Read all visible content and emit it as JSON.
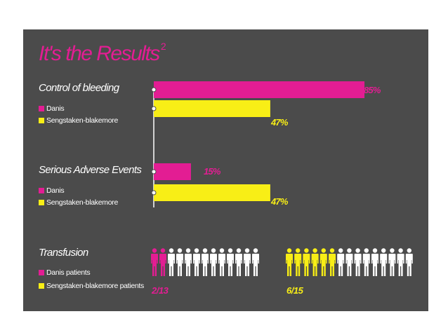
{
  "title": "It's the Results",
  "title_superscript": "2",
  "colors": {
    "danis": "#e31d93",
    "sengstaken": "#f8ee16",
    "background": "#4b4b4b",
    "neutral": "#ffffff"
  },
  "chart_data": [
    {
      "type": "bar",
      "title": "Control of bleeding",
      "series": [
        {
          "name": "Danis",
          "value": 85,
          "label": "85%"
        },
        {
          "name": "Sengstaken-blakemore",
          "value": 47,
          "label": "47%"
        }
      ],
      "xlim": [
        0,
        100
      ]
    },
    {
      "type": "bar",
      "title": "Serious Adverse Events",
      "series": [
        {
          "name": "Danis",
          "value": 15,
          "label": "15%"
        },
        {
          "name": "Sengstaken-blakemore",
          "value": 47,
          "label": "47%"
        }
      ],
      "xlim": [
        0,
        100
      ]
    },
    {
      "type": "pictogram",
      "title": "Transfusion",
      "series": [
        {
          "name": "Danis patients",
          "count": 2,
          "total": 13,
          "label": "2/13"
        },
        {
          "name": "Sengstaken-blakemore patients",
          "count": 6,
          "total": 15,
          "label": "6/15"
        }
      ]
    }
  ]
}
